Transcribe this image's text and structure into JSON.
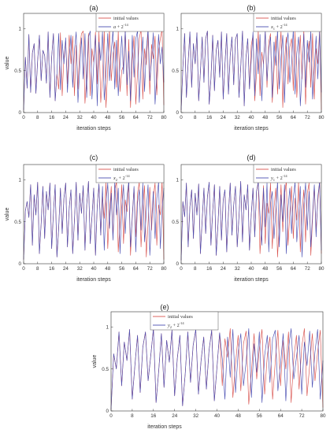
{
  "figure": {
    "colors": {
      "initial": "#d9534f",
      "perturbed": "#4a4fb3",
      "axis": "#333333"
    }
  },
  "chart_data": [
    {
      "type": "line",
      "title": "(a)",
      "xlabel": "iteration steps",
      "ylabel": "value",
      "xlim": [
        0,
        80
      ],
      "ylim": [
        0,
        1
      ],
      "xticks": [
        0,
        8,
        16,
        24,
        32,
        40,
        48,
        56,
        64,
        72,
        80
      ],
      "yticks": [
        0,
        0.5,
        1
      ],
      "legend": {
        "placement": "top-right",
        "entries": [
          "initial values",
          "a + 2^-14"
        ]
      },
      "series": [
        {
          "name": "initial values",
          "values": [
            0.03,
            0.66,
            0.29,
            0.93,
            0.24,
            0.71,
            0.82,
            0.23,
            0.62,
            0.92,
            0.38,
            0.74,
            0.68,
            0.35,
            0.96,
            0.18,
            0.66,
            0.94,
            0.14,
            0.46,
            0.28,
            0.95,
            0.2,
            0.66,
            0.85,
            0.34,
            0.92,
            0.58,
            0.91,
            0.2,
            0.8,
            0.28,
            0.76,
            0.94,
            0.97,
            0.11,
            0.42,
            0.94,
            0.2,
            0.76,
            0.6,
            0.96,
            0.34,
            0.96,
            0.12,
            0.42,
            0.97,
            0.06,
            0.52,
            0.99,
            0.38,
            0.69,
            0.84,
            0.3,
            0.97,
            0.25,
            0.5,
            0.56,
            0.98,
            0.2,
            0.87,
            0.06,
            0.63,
            0.91,
            0.1,
            0.48,
            0.88,
            0.99,
            0.16,
            0.76,
            0.57,
            0.96,
            0.22,
            0.81,
            0.64,
            0.91,
            0.21,
            0.73,
            0.88,
            0.99,
            0.09
          ]
        },
        {
          "name": "a + 2^-14",
          "values": [
            0.03,
            0.66,
            0.29,
            0.93,
            0.24,
            0.71,
            0.82,
            0.23,
            0.62,
            0.92,
            0.38,
            0.74,
            0.68,
            0.35,
            0.96,
            0.18,
            0.66,
            0.94,
            0.14,
            0.46,
            0.94,
            0.27,
            0.86,
            0.58,
            0.89,
            0.24,
            0.66,
            0.92,
            0.3,
            0.74,
            0.96,
            0.12,
            0.52,
            0.89,
            0.4,
            0.94,
            0.18,
            0.9,
            0.97,
            0.16,
            0.57,
            0.92,
            0.08,
            0.84,
            0.62,
            0.96,
            0.15,
            0.46,
            0.94,
            0.38,
            0.73,
            0.98,
            0.28,
            0.86,
            0.2,
            0.58,
            0.91,
            0.46,
            0.98,
            0.33,
            0.73,
            0.14,
            0.92,
            0.42,
            0.88,
            0.97,
            0.12,
            0.56,
            0.9,
            0.25,
            0.74,
            0.99,
            0.38,
            0.62,
            0.95,
            0.1,
            0.45,
            0.93,
            0.58,
            0.78,
            0.36
          ]
        }
      ]
    },
    {
      "type": "line",
      "title": "(b)",
      "xlabel": "iteration steps",
      "ylabel": "",
      "xlim": [
        0,
        80
      ],
      "ylim": [
        0,
        1
      ],
      "xticks": [
        0,
        8,
        16,
        24,
        32,
        40,
        48,
        56,
        64,
        72,
        80
      ],
      "yticks": [
        0,
        0.5,
        1
      ],
      "legend": {
        "placement": "top-right",
        "entries": [
          "initial values",
          "x1 + 2^-14"
        ]
      },
      "series": [
        {
          "name": "initial values",
          "values": [
            0.03,
            0.54,
            0.94,
            0.18,
            0.6,
            0.96,
            0.3,
            0.82,
            0.58,
            0.95,
            0.14,
            0.49,
            0.9,
            0.36,
            0.88,
            0.97,
            0.1,
            0.4,
            0.92,
            0.26,
            0.74,
            0.86,
            0.42,
            0.96,
            0.16,
            0.58,
            0.94,
            0.22,
            0.68,
            0.9,
            0.33,
            0.87,
            0.94,
            0.18,
            0.54,
            0.97,
            0.08,
            0.66,
            0.88,
            0.28,
            0.8,
            0.92,
            0.14,
            0.46,
            0.98,
            0.2,
            0.72,
            0.58,
            0.96,
            0.3,
            0.84,
            0.94,
            0.12,
            0.5,
            0.91,
            0.22,
            0.7,
            0.97,
            0.06,
            0.62,
            0.9,
            0.34,
            0.78,
            0.88,
            0.26,
            0.96,
            0.18,
            0.57,
            0.92,
            0.4,
            0.99,
            0.1,
            0.64,
            0.85,
            0.3,
            0.94,
            0.16,
            0.76,
            0.58,
            0.98,
            0.03
          ]
        },
        {
          "name": "x1 + 2^-14",
          "values": [
            0.03,
            0.54,
            0.94,
            0.18,
            0.6,
            0.96,
            0.3,
            0.82,
            0.58,
            0.95,
            0.14,
            0.49,
            0.9,
            0.36,
            0.88,
            0.97,
            0.1,
            0.4,
            0.92,
            0.26,
            0.74,
            0.86,
            0.42,
            0.96,
            0.16,
            0.58,
            0.94,
            0.22,
            0.68,
            0.9,
            0.33,
            0.87,
            0.94,
            0.18,
            0.54,
            0.97,
            0.08,
            0.66,
            0.88,
            0.28,
            0.62,
            0.96,
            0.2,
            0.88,
            0.46,
            0.93,
            0.14,
            0.6,
            0.97,
            0.38,
            0.74,
            0.9,
            0.18,
            0.84,
            0.56,
            0.98,
            0.28,
            0.66,
            0.92,
            0.12,
            0.78,
            0.95,
            0.36,
            0.58,
            0.99,
            0.22,
            0.7,
            0.9,
            0.08,
            0.48,
            0.94,
            0.3,
            0.86,
            0.6,
            0.97,
            0.16,
            0.52,
            0.91,
            0.4,
            0.96,
            0.24
          ]
        }
      ]
    },
    {
      "type": "line",
      "title": "(c)",
      "xlabel": "iteration steps",
      "ylabel": "value",
      "xlim": [
        0,
        80
      ],
      "ylim": [
        0,
        1
      ],
      "xticks": [
        0,
        8,
        16,
        24,
        32,
        40,
        48,
        56,
        64,
        72,
        80
      ],
      "yticks": [
        0,
        0.5,
        1
      ],
      "legend": {
        "placement": "top-right",
        "entries": [
          "initial values",
          "x2 + 2^-14"
        ]
      },
      "series": [
        {
          "name": "initial values",
          "values": [
            0.05,
            0.63,
            0.74,
            0.55,
            0.94,
            0.22,
            0.82,
            0.58,
            0.97,
            0.12,
            0.48,
            0.92,
            0.3,
            0.86,
            0.64,
            0.96,
            0.18,
            0.6,
            0.94,
            0.08,
            0.42,
            0.9,
            0.36,
            0.78,
            0.96,
            0.2,
            0.66,
            0.88,
            0.12,
            0.52,
            0.97,
            0.28,
            0.84,
            0.6,
            0.93,
            0.16,
            0.7,
            0.98,
            0.24,
            0.56,
            0.9,
            0.1,
            0.68,
            0.95,
            0.34,
            0.8,
            0.54,
            0.97,
            0.18,
            0.62,
            0.92,
            0.3,
            0.87,
            0.98,
            0.14,
            0.5,
            0.94,
            0.24,
            0.76,
            0.62,
            0.96,
            0.1,
            0.58,
            0.9,
            0.32,
            0.84,
            0.97,
            0.2,
            0.64,
            0.93,
            0.08,
            0.48,
            0.91,
            0.4,
            0.8,
            0.96,
            0.22,
            0.7,
            0.58,
            0.99,
            0.05
          ]
        },
        {
          "name": "x2 + 2^-14",
          "values": [
            0.05,
            0.63,
            0.74,
            0.55,
            0.94,
            0.22,
            0.82,
            0.58,
            0.97,
            0.12,
            0.48,
            0.92,
            0.3,
            0.86,
            0.64,
            0.96,
            0.18,
            0.6,
            0.94,
            0.08,
            0.42,
            0.9,
            0.36,
            0.78,
            0.96,
            0.2,
            0.66,
            0.88,
            0.12,
            0.52,
            0.97,
            0.28,
            0.84,
            0.6,
            0.93,
            0.16,
            0.7,
            0.98,
            0.24,
            0.56,
            0.9,
            0.1,
            0.68,
            0.95,
            0.34,
            0.92,
            0.16,
            0.7,
            0.96,
            0.42,
            0.84,
            0.28,
            0.97,
            0.58,
            0.9,
            0.12,
            0.66,
            0.94,
            0.36,
            0.8,
            0.98,
            0.2,
            0.54,
            0.92,
            0.14,
            0.72,
            0.88,
            0.4,
            0.96,
            0.26,
            0.62,
            0.94,
            0.1,
            0.5,
            0.86,
            0.3,
            0.78,
            0.97,
            0.18,
            0.64,
            0.9
          ]
        }
      ]
    },
    {
      "type": "line",
      "title": "(d)",
      "xlabel": "iteration steps",
      "ylabel": "",
      "xlim": [
        0,
        80
      ],
      "ylim": [
        0,
        1
      ],
      "xticks": [
        0,
        8,
        16,
        24,
        32,
        40,
        48,
        56,
        64,
        72,
        80
      ],
      "yticks": [
        0,
        0.5,
        1
      ],
      "legend": {
        "placement": "top-right",
        "entries": [
          "initial values",
          "y1 + 2^-14"
        ]
      },
      "series": [
        {
          "name": "initial values",
          "values": [
            0.04,
            0.74,
            0.56,
            0.96,
            0.2,
            0.68,
            0.88,
            0.3,
            0.84,
            0.58,
            0.95,
            0.12,
            0.52,
            0.9,
            0.36,
            0.8,
            0.97,
            0.22,
            0.62,
            0.94,
            0.1,
            0.46,
            0.92,
            0.28,
            0.76,
            0.88,
            0.14,
            0.6,
            0.96,
            0.34,
            0.7,
            0.92,
            0.2,
            0.56,
            0.98,
            0.26,
            0.82,
            0.64,
            0.94,
            0.16,
            0.58,
            0.9,
            0.32,
            0.86,
            0.97,
            0.12,
            0.5,
            0.93,
            0.24,
            0.72,
            0.6,
            0.96,
            0.18,
            0.66,
            0.9,
            0.08,
            0.46,
            0.94,
            0.38,
            0.82,
            0.98,
            0.22,
            0.6,
            0.92,
            0.3,
            0.78,
            0.52,
            0.97,
            0.14,
            0.62,
            0.88,
            0.26,
            0.84,
            0.96,
            0.1,
            0.54,
            0.92,
            0.4,
            0.74,
            0.99,
            0.12
          ]
        },
        {
          "name": "y1 + 2^-14",
          "values": [
            0.04,
            0.74,
            0.56,
            0.96,
            0.2,
            0.68,
            0.88,
            0.3,
            0.84,
            0.58,
            0.95,
            0.12,
            0.52,
            0.9,
            0.36,
            0.8,
            0.97,
            0.22,
            0.62,
            0.94,
            0.1,
            0.46,
            0.92,
            0.28,
            0.76,
            0.88,
            0.14,
            0.6,
            0.96,
            0.34,
            0.7,
            0.92,
            0.2,
            0.56,
            0.98,
            0.26,
            0.82,
            0.64,
            0.94,
            0.16,
            0.58,
            0.9,
            0.32,
            0.86,
            0.97,
            0.58,
            0.22,
            0.9,
            0.44,
            0.96,
            0.14,
            0.72,
            0.86,
            0.3,
            0.62,
            0.98,
            0.2,
            0.82,
            0.5,
            0.94,
            0.12,
            0.66,
            0.9,
            0.36,
            0.78,
            0.97,
            0.26,
            0.56,
            0.92,
            0.08,
            0.7,
            0.96,
            0.4,
            0.86,
            0.2,
            0.6,
            0.94,
            0.32,
            0.8,
            0.97,
            0.16
          ]
        }
      ]
    },
    {
      "type": "line",
      "title": "(e)",
      "xlabel": "iteration steps",
      "ylabel": "value",
      "xlim": [
        0,
        80
      ],
      "ylim": [
        0,
        1
      ],
      "xticks": [
        0,
        8,
        16,
        24,
        32,
        40,
        48,
        56,
        64,
        72,
        80
      ],
      "yticks": [
        0,
        0.5,
        1
      ],
      "legend": {
        "placement": "top-right",
        "entries": [
          "initial values",
          "y2 + 2^-14"
        ]
      },
      "series": [
        {
          "name": "initial values",
          "values": [
            0.02,
            0.68,
            0.5,
            0.94,
            0.3,
            0.82,
            0.6,
            0.97,
            0.14,
            0.54,
            0.9,
            0.22,
            0.76,
            0.94,
            0.36,
            0.66,
            0.98,
            0.1,
            0.48,
            0.92,
            0.28,
            0.84,
            0.58,
            0.96,
            0.18,
            0.62,
            0.9,
            0.06,
            0.44,
            0.94,
            0.34,
            0.78,
            0.97,
            0.2,
            0.6,
            0.88,
            0.26,
            0.72,
            0.96,
            0.12,
            0.52,
            0.93,
            0.3,
            0.86,
            0.64,
            0.98,
            0.16,
            0.56,
            0.9,
            0.24,
            0.8,
            0.95,
            0.08,
            0.46,
            0.92,
            0.38,
            0.74,
            0.97,
            0.2,
            0.66,
            0.88,
            0.14,
            0.58,
            0.96,
            0.3,
            0.84,
            0.5,
            0.94,
            0.1,
            0.62,
            0.9,
            0.26,
            0.76,
            0.98,
            0.18,
            0.54,
            0.92,
            0.36,
            0.7,
            0.96,
            0.04
          ]
        },
        {
          "name": "y2 + 2^-14",
          "values": [
            0.02,
            0.68,
            0.5,
            0.94,
            0.3,
            0.82,
            0.6,
            0.97,
            0.14,
            0.54,
            0.9,
            0.22,
            0.76,
            0.94,
            0.36,
            0.66,
            0.98,
            0.1,
            0.48,
            0.92,
            0.28,
            0.84,
            0.58,
            0.96,
            0.18,
            0.62,
            0.9,
            0.06,
            0.44,
            0.94,
            0.34,
            0.78,
            0.97,
            0.2,
            0.6,
            0.88,
            0.26,
            0.72,
            0.96,
            0.12,
            0.52,
            0.93,
            0.62,
            0.14,
            0.88,
            0.4,
            0.97,
            0.22,
            0.7,
            0.92,
            0.3,
            0.58,
            0.98,
            0.16,
            0.8,
            0.46,
            0.94,
            0.1,
            0.66,
            0.9,
            0.34,
            0.86,
            0.96,
            0.24,
            0.56,
            0.92,
            0.12,
            0.74,
            0.98,
            0.38,
            0.64,
            0.9,
            0.2,
            0.82,
            0.54,
            0.95,
            0.28,
            0.7,
            0.97,
            0.14,
            0.6
          ]
        }
      ]
    }
  ]
}
